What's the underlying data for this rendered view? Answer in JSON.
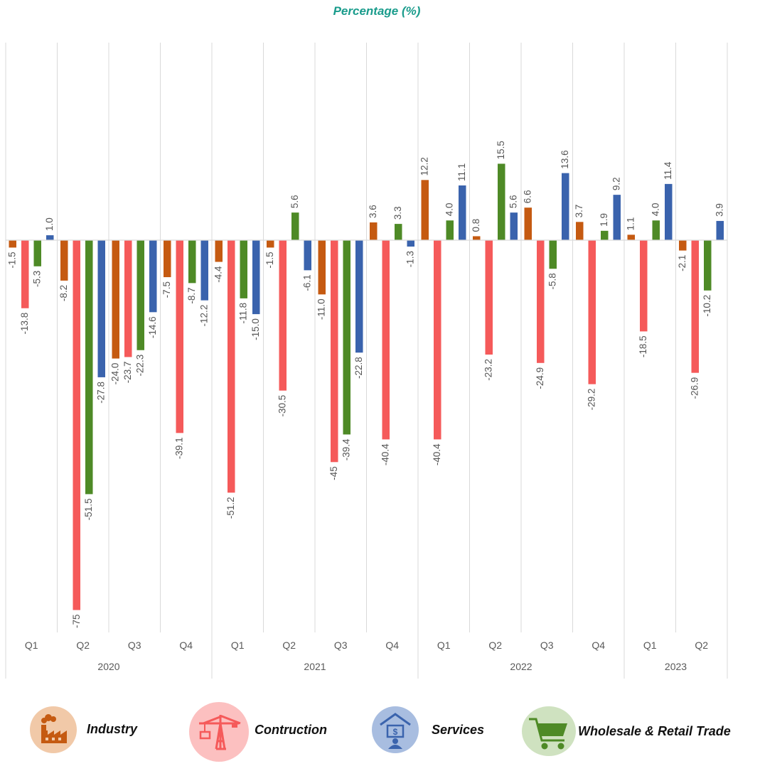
{
  "chart_data": {
    "type": "bar",
    "title": "Percentage (%)",
    "xlabel": "",
    "ylabel": "",
    "ylim": [
      -75,
      20
    ],
    "grid": "vertical category separators",
    "legend_position": "bottom",
    "years": [
      {
        "label": "2020",
        "quarters": [
          "Q1",
          "Q2",
          "Q3",
          "Q4"
        ]
      },
      {
        "label": "2021",
        "quarters": [
          "Q1",
          "Q2",
          "Q3",
          "Q4"
        ]
      },
      {
        "label": "2022",
        "quarters": [
          "Q1",
          "Q2",
          "Q3",
          "Q4"
        ]
      },
      {
        "label": "2023",
        "quarters": [
          "Q1",
          "Q2"
        ]
      }
    ],
    "series": [
      {
        "name": "Industry",
        "color": "#c55a11",
        "values": [
          -1.5,
          -8.2,
          -24.0,
          -7.5,
          -4.4,
          -1.5,
          -11.0,
          3.6,
          12.2,
          0.8,
          6.6,
          3.7,
          1.1,
          -2.1
        ],
        "labels": [
          "-1.5",
          "-8.2",
          "-24.0",
          "-7.5",
          "-4.4",
          "-1.5",
          "-11.0",
          "3.6",
          "12.2",
          "0.8",
          "6.6",
          "3.7",
          "1.1",
          "-2.1"
        ]
      },
      {
        "name": "Contruction",
        "color": "#f55a5a",
        "values": [
          -13.8,
          -75,
          -23.7,
          -39.1,
          -51.2,
          -30.5,
          -45,
          -40.4,
          -40.4,
          -23.2,
          -24.9,
          -29.2,
          -18.5,
          -26.9
        ],
        "labels": [
          "-13.8",
          "-75",
          "-23.7",
          "-39.1",
          "-51.2",
          "-30.5",
          "-45",
          "-40.4",
          "-40.4",
          "-23.2",
          "-24.9",
          "-29.2",
          "-18.5",
          "-26.9"
        ]
      },
      {
        "name": "Wholesale & Retail Trade",
        "color": "#4e8a26",
        "values": [
          -5.3,
          -51.5,
          -22.3,
          -8.7,
          -11.8,
          5.6,
          -39.4,
          3.3,
          4.0,
          15.5,
          -5.8,
          1.9,
          4.0,
          -10.2
        ],
        "labels": [
          "-5.3",
          "-51.5",
          "-22.3",
          "-8.7",
          "-11.8",
          "5.6",
          "-39.4",
          "3.3",
          "4.0",
          "15.5",
          "-5.8",
          "1.9",
          "4.0",
          "-10.2"
        ]
      },
      {
        "name": "Services",
        "color": "#3a63ad",
        "values": [
          1.0,
          -27.8,
          -14.6,
          -12.2,
          -15.0,
          -6.1,
          -22.8,
          -1.3,
          11.1,
          5.6,
          13.6,
          9.2,
          11.4,
          3.9
        ],
        "labels": [
          "1.0",
          "-27.8",
          "-14.6",
          "-12.2",
          "-15.0",
          "-6.1",
          "-22.8",
          "-1.3",
          "11.1",
          "5.6",
          "13.6",
          "9.2",
          "11.4",
          "3.9"
        ]
      }
    ]
  },
  "legend": [
    {
      "label": "Industry",
      "icon": "factory-icon",
      "color": "#c55a11",
      "bg": "#f1c9a8"
    },
    {
      "label": "Contruction",
      "icon": "crane-icon",
      "color": "#f55a5a",
      "bg": "#fcc0c0"
    },
    {
      "label": "Services",
      "icon": "bank-services-icon",
      "color": "#3a63ad",
      "bg": "#a8bde0"
    },
    {
      "label": "Wholesale & Retail Trade",
      "icon": "shopping-cart-icon",
      "color": "#4e8a26",
      "bg": "#cfe2c0"
    }
  ]
}
